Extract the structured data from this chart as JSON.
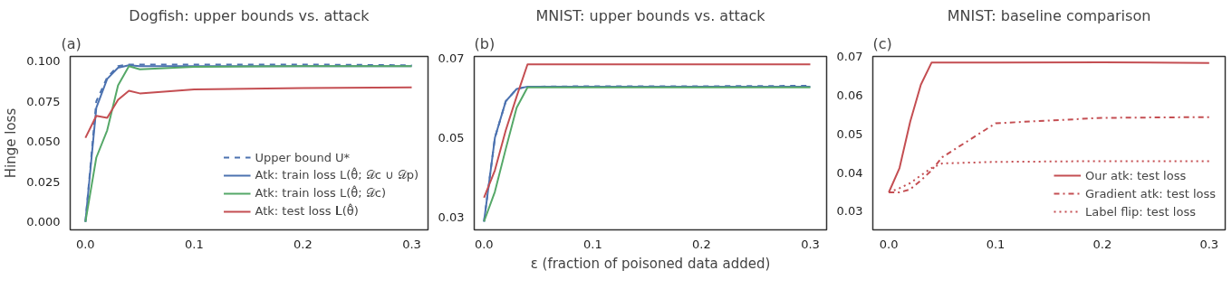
{
  "chart_data": [
    {
      "type": "line",
      "title": "Dogfish: upper bounds vs. attack",
      "annotations": [
        "(a)"
      ],
      "ylabel": "Hinge loss",
      "xlim": [
        -0.014,
        0.315
      ],
      "ylim": [
        -0.005,
        0.103
      ],
      "xticks": [
        {
          "value": 0,
          "label": "0.0"
        },
        {
          "value": 0.1,
          "label": "0.1"
        },
        {
          "value": 0.2,
          "label": "0.2"
        },
        {
          "value": 0.3,
          "label": "0.3"
        }
      ],
      "yticks": [
        {
          "value": 0,
          "label": "0.000"
        },
        {
          "value": 0.025,
          "label": "0.025"
        },
        {
          "value": 0.05,
          "label": "0.050"
        },
        {
          "value": 0.075,
          "label": "0.075"
        },
        {
          "value": 0.1,
          "label": "0.100"
        }
      ],
      "grid": false,
      "legend": "bottom right",
      "x": [
        0,
        0.01,
        0.02,
        0.03,
        0.04,
        0.05,
        0.1,
        0.2,
        0.3
      ],
      "series": [
        {
          "name": "Upper bound U*",
          "color": "#4c72b0",
          "line_style": "dashed",
          "values": [
            0.0,
            0.075,
            0.09,
            0.097,
            0.098,
            0.098,
            0.098,
            0.098,
            0.0975
          ]
        },
        {
          "name": "Atk: train loss L(θ̂; 𝒟c ∪ 𝒟p)",
          "color": "#4c72b0",
          "line_style": "solid",
          "values": [
            0.0,
            0.071,
            0.089,
            0.096,
            0.0975,
            0.097,
            0.097,
            0.097,
            0.097
          ]
        },
        {
          "name": "Atk: train loss L(θ̂; 𝒟c)",
          "color": "#55a868",
          "line_style": "solid",
          "values": [
            0.0,
            0.04,
            0.057,
            0.085,
            0.097,
            0.095,
            0.0965,
            0.097,
            0.097
          ]
        },
        {
          "name": "Atk: test loss 𝐋(θ̂)",
          "color": "#c44e52",
          "line_style": "solid",
          "values": [
            0.0523,
            0.066,
            0.0648,
            0.076,
            0.0816,
            0.08,
            0.0825,
            0.0833,
            0.0838
          ]
        }
      ]
    },
    {
      "type": "line",
      "title": "MNIST: upper bounds vs. attack",
      "annotations": [
        "(b)"
      ],
      "xlabel": "ε (fraction of poisoned data added)",
      "xlim": [
        -0.009,
        0.315
      ],
      "ylim": [
        0.0268,
        0.0705
      ],
      "xticks": [
        {
          "value": 0,
          "label": "0.0"
        },
        {
          "value": 0.1,
          "label": "0.1"
        },
        {
          "value": 0.2,
          "label": "0.2"
        },
        {
          "value": 0.3,
          "label": "0.3"
        }
      ],
      "yticks": [
        0.03,
        0.05,
        0.07
      ],
      "grid": false,
      "x": [
        0,
        0.01,
        0.02,
        0.03,
        0.04,
        0.05,
        0.1,
        0.2,
        0.3
      ],
      "series": [
        {
          "color": "#4c72b0",
          "line_style": "dashed",
          "values": [
            0.0289,
            0.05,
            0.0592,
            0.0623,
            0.0629,
            0.0629,
            0.063,
            0.063,
            0.0631
          ]
        },
        {
          "color": "#4c72b0",
          "line_style": "solid",
          "values": [
            0.0289,
            0.05,
            0.0592,
            0.0623,
            0.0629,
            0.0629,
            0.0629,
            0.0629,
            0.0629
          ]
        },
        {
          "color": "#55a868",
          "line_style": "solid",
          "values": [
            0.0289,
            0.0364,
            0.0472,
            0.0576,
            0.0627,
            0.0627,
            0.0627,
            0.0627,
            0.0627
          ]
        },
        {
          "color": "#c44e52",
          "line_style": "solid",
          "values": [
            0.0349,
            0.0418,
            0.0519,
            0.0604,
            0.0685,
            0.0685,
            0.0685,
            0.0685,
            0.0685
          ]
        }
      ]
    },
    {
      "type": "line",
      "title": "MNIST: baseline comparison",
      "annotations": [
        "(c)"
      ],
      "xlim": [
        -0.015,
        0.315
      ],
      "ylim": [
        0.0252,
        0.0701
      ],
      "xticks": [
        {
          "value": 0,
          "label": "0.0"
        },
        {
          "value": 0.1,
          "label": "0.1"
        },
        {
          "value": 0.2,
          "label": "0.2"
        },
        {
          "value": 0.3,
          "label": "0.3"
        }
      ],
      "yticks": [
        0.03,
        0.04,
        0.05,
        0.06,
        0.07
      ],
      "grid": false,
      "legend": "bottom right",
      "x": [
        0,
        0.01,
        0.02,
        0.03,
        0.04,
        0.05,
        0.1,
        0.2,
        0.3
      ],
      "series": [
        {
          "name": "Our atk: test loss",
          "color": "#c44e52",
          "line_style": "solid",
          "values": [
            0.0349,
            0.0412,
            0.0532,
            0.0628,
            0.0685,
            0.0685,
            0.0685,
            0.0686,
            0.0684
          ]
        },
        {
          "name": "Gradient atk: test loss",
          "color": "#c44e52",
          "line_style": "dashdot",
          "values": [
            0.0349,
            0.0349,
            0.0357,
            0.038,
            0.0406,
            0.044,
            0.0528,
            0.0542,
            0.0544
          ]
        },
        {
          "name": "Label flip: test loss",
          "color": "#c44e52",
          "line_style": "dotted",
          "values": [
            0.0349,
            0.036,
            0.0373,
            0.0393,
            0.0412,
            0.0424,
            0.0428,
            0.043,
            0.043
          ]
        }
      ]
    }
  ]
}
